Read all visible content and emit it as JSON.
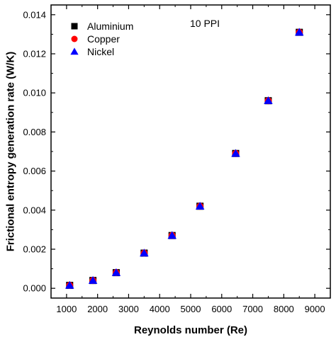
{
  "chart_data": {
    "type": "scatter",
    "title": "",
    "annotation": "10 PPI",
    "xlabel": "Reynolds number (Re)",
    "ylabel": "Frictional entropy generation rate (W/K)",
    "xlim": [
      500,
      9500
    ],
    "ylim": [
      -0.0005,
      0.0145
    ],
    "xticks": [
      "1000",
      "2000",
      "3000",
      "4000",
      "5000",
      "6000",
      "7000",
      "8000",
      "9000"
    ],
    "yticks": [
      "0.000",
      "0.002",
      "0.004",
      "0.006",
      "0.008",
      "0.010",
      "0.012",
      "0.014"
    ],
    "grid": false,
    "legend_position": "top-left",
    "series": [
      {
        "name": "Aluminium",
        "marker": "square",
        "color": "#000000",
        "x": [
          1100,
          1850,
          2600,
          3500,
          4400,
          5300,
          6450,
          7500,
          8500
        ],
        "y": [
          0.00015,
          0.0004,
          0.0008,
          0.0018,
          0.0027,
          0.0042,
          0.0069,
          0.0096,
          0.0131
        ]
      },
      {
        "name": "Copper",
        "marker": "circle",
        "color": "#ff0000",
        "x": [
          1100,
          1850,
          2600,
          3500,
          4400,
          5300,
          6450,
          7500,
          8500
        ],
        "y": [
          0.00015,
          0.0004,
          0.0008,
          0.0018,
          0.0027,
          0.0042,
          0.0069,
          0.0096,
          0.0131
        ]
      },
      {
        "name": "Nickel",
        "marker": "triangle",
        "color": "#0000ff",
        "x": [
          1100,
          1850,
          2600,
          3500,
          4400,
          5300,
          6450,
          7500,
          8500
        ],
        "y": [
          0.00015,
          0.0004,
          0.0008,
          0.0018,
          0.0027,
          0.0042,
          0.0069,
          0.0096,
          0.0131
        ]
      }
    ]
  }
}
